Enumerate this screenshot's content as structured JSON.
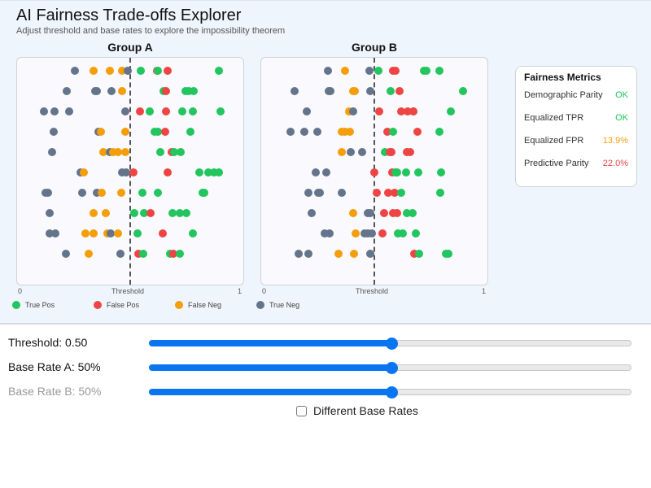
{
  "header": {
    "title": "AI Fairness Trade-offs Explorer",
    "subtitle": "Adjust threshold and base rates to explore the impossibility theorem"
  },
  "colors": {
    "true_pos": "#22c55e",
    "false_pos": "#ef4444",
    "false_neg": "#f59e0b",
    "true_neg": "#64748b",
    "ok": "#22c55e",
    "warn": "#f59e0b",
    "bad": "#ef4444",
    "accent": "#0a75f0"
  },
  "axis": {
    "min_label": "0",
    "mid_label": "Threshold",
    "max_label": "1"
  },
  "threshold": 0.5,
  "groups": [
    {
      "name": "Group A",
      "dots": [
        [
          0.25,
          0,
          "tn"
        ],
        [
          0.335,
          0,
          "fn"
        ],
        [
          0.408,
          0,
          "fn"
        ],
        [
          0.463,
          0,
          "fn"
        ],
        [
          0.489,
          0,
          "tn"
        ],
        [
          0.548,
          0,
          "tp"
        ],
        [
          0.621,
          0,
          "fp"
        ],
        [
          0.625,
          0,
          "tp"
        ],
        [
          0.669,
          0,
          "fp"
        ],
        [
          0.901,
          0,
          "tp"
        ],
        [
          0.213,
          1,
          "tn"
        ],
        [
          0.342,
          1,
          "tn"
        ],
        [
          0.349,
          1,
          "tn"
        ],
        [
          0.415,
          1,
          "tn"
        ],
        [
          0.463,
          1,
          "fn"
        ],
        [
          0.651,
          1,
          "tp"
        ],
        [
          0.662,
          1,
          "fp"
        ],
        [
          0.75,
          1,
          "tp"
        ],
        [
          0.765,
          1,
          "tp"
        ],
        [
          0.787,
          1,
          "tp"
        ],
        [
          0.11,
          2,
          "tn"
        ],
        [
          0.158,
          2,
          "tn"
        ],
        [
          0.224,
          2,
          "tn"
        ],
        [
          0.478,
          2,
          "tn"
        ],
        [
          0.544,
          2,
          "fp"
        ],
        [
          0.588,
          2,
          "tp"
        ],
        [
          0.662,
          2,
          "fp"
        ],
        [
          0.735,
          2,
          "tp"
        ],
        [
          0.783,
          2,
          "tp"
        ],
        [
          0.908,
          2,
          "tp"
        ],
        [
          0.154,
          3,
          "tn"
        ],
        [
          0.357,
          3,
          "tn"
        ],
        [
          0.368,
          3,
          "fn"
        ],
        [
          0.478,
          3,
          "fn"
        ],
        [
          0.61,
          3,
          "tp"
        ],
        [
          0.625,
          3,
          "tp"
        ],
        [
          0.658,
          3,
          "fp"
        ],
        [
          0.772,
          3,
          "tp"
        ],
        [
          0.147,
          4,
          "tn"
        ],
        [
          0.379,
          4,
          "fn"
        ],
        [
          0.408,
          4,
          "tn"
        ],
        [
          0.423,
          4,
          "fn"
        ],
        [
          0.445,
          4,
          "fn"
        ],
        [
          0.478,
          4,
          "fn"
        ],
        [
          0.636,
          4,
          "tp"
        ],
        [
          0.688,
          4,
          "fp"
        ],
        [
          0.699,
          4,
          "tp"
        ],
        [
          0.728,
          4,
          "tp"
        ],
        [
          0.276,
          5,
          "tn"
        ],
        [
          0.29,
          5,
          "fn"
        ],
        [
          0.463,
          5,
          "tn"
        ],
        [
          0.482,
          5,
          "tn"
        ],
        [
          0.515,
          5,
          "fp"
        ],
        [
          0.669,
          5,
          "fp"
        ],
        [
          0.813,
          5,
          "tp"
        ],
        [
          0.853,
          5,
          "tp"
        ],
        [
          0.879,
          5,
          "tp"
        ],
        [
          0.901,
          5,
          "tp"
        ],
        [
          0.118,
          6,
          "tn"
        ],
        [
          0.129,
          6,
          "tn"
        ],
        [
          0.283,
          6,
          "tn"
        ],
        [
          0.349,
          6,
          "tn"
        ],
        [
          0.371,
          6,
          "fn"
        ],
        [
          0.46,
          6,
          "fn"
        ],
        [
          0.555,
          6,
          "tp"
        ],
        [
          0.625,
          6,
          "tp"
        ],
        [
          0.827,
          6,
          "tp"
        ],
        [
          0.835,
          6,
          "tp"
        ],
        [
          0.136,
          7,
          "tn"
        ],
        [
          0.335,
          7,
          "fn"
        ],
        [
          0.39,
          7,
          "fn"
        ],
        [
          0.518,
          7,
          "tp"
        ],
        [
          0.563,
          7,
          "tp"
        ],
        [
          0.592,
          7,
          "fp"
        ],
        [
          0.691,
          7,
          "tp"
        ],
        [
          0.724,
          7,
          "tp"
        ],
        [
          0.754,
          7,
          "tp"
        ],
        [
          0.136,
          8,
          "tn"
        ],
        [
          0.162,
          8,
          "tn"
        ],
        [
          0.298,
          8,
          "fn"
        ],
        [
          0.335,
          8,
          "fn"
        ],
        [
          0.397,
          8,
          "fn"
        ],
        [
          0.412,
          8,
          "tn"
        ],
        [
          0.445,
          8,
          "fn"
        ],
        [
          0.533,
          8,
          "tp"
        ],
        [
          0.647,
          8,
          "fp"
        ],
        [
          0.783,
          8,
          "tp"
        ],
        [
          0.21,
          9,
          "tn"
        ],
        [
          0.313,
          9,
          "fn"
        ],
        [
          0.456,
          9,
          "tn"
        ],
        [
          0.537,
          9,
          "fp"
        ],
        [
          0.559,
          9,
          "tp"
        ],
        [
          0.68,
          9,
          "tp"
        ],
        [
          0.695,
          9,
          "fp"
        ],
        [
          0.724,
          9,
          "tp"
        ]
      ]
    },
    {
      "name": "Group B",
      "dots": [
        [
          0.29,
          0,
          "tn"
        ],
        [
          0.368,
          0,
          "fn"
        ],
        [
          0.478,
          0,
          "tn"
        ],
        [
          0.518,
          0,
          "tp"
        ],
        [
          0.585,
          0,
          "fp"
        ],
        [
          0.596,
          0,
          "fp"
        ],
        [
          0.724,
          0,
          "tp"
        ],
        [
          0.735,
          0,
          "tp"
        ],
        [
          0.794,
          0,
          "tp"
        ],
        [
          0.14,
          1,
          "tn"
        ],
        [
          0.294,
          1,
          "tn"
        ],
        [
          0.301,
          1,
          "tn"
        ],
        [
          0.404,
          1,
          "fn"
        ],
        [
          0.412,
          1,
          "fn"
        ],
        [
          0.482,
          1,
          "tn"
        ],
        [
          0.574,
          1,
          "tp"
        ],
        [
          0.614,
          1,
          "fp"
        ],
        [
          0.901,
          1,
          "tp"
        ],
        [
          0.195,
          2,
          "tn"
        ],
        [
          0.386,
          2,
          "fn"
        ],
        [
          0.404,
          2,
          "tn"
        ],
        [
          0.522,
          2,
          "fp"
        ],
        [
          0.621,
          2,
          "fp"
        ],
        [
          0.651,
          2,
          "fp"
        ],
        [
          0.677,
          2,
          "tp"
        ],
        [
          0.676,
          2,
          "fp"
        ],
        [
          0.846,
          2,
          "tp"
        ],
        [
          0.121,
          3,
          "tn"
        ],
        [
          0.184,
          3,
          "tn"
        ],
        [
          0.243,
          3,
          "tn"
        ],
        [
          0.353,
          3,
          "fn"
        ],
        [
          0.368,
          3,
          "fn"
        ],
        [
          0.39,
          3,
          "fn"
        ],
        [
          0.559,
          3,
          "fp"
        ],
        [
          0.585,
          3,
          "tp"
        ],
        [
          0.695,
          3,
          "fp"
        ],
        [
          0.794,
          3,
          "tp"
        ],
        [
          0.353,
          4,
          "fn"
        ],
        [
          0.393,
          4,
          "tn"
        ],
        [
          0.445,
          4,
          "tn"
        ],
        [
          0.548,
          4,
          "tp"
        ],
        [
          0.57,
          4,
          "fp"
        ],
        [
          0.577,
          4,
          "fp"
        ],
        [
          0.647,
          4,
          "fp"
        ],
        [
          0.662,
          4,
          "fp"
        ],
        [
          0.235,
          5,
          "tn"
        ],
        [
          0.283,
          5,
          "tn"
        ],
        [
          0.5,
          5,
          "fp"
        ],
        [
          0.581,
          5,
          "fp"
        ],
        [
          0.596,
          5,
          "tp"
        ],
        [
          0.603,
          5,
          "tp"
        ],
        [
          0.643,
          5,
          "tp"
        ],
        [
          0.699,
          5,
          "tp"
        ],
        [
          0.801,
          5,
          "tp"
        ],
        [
          0.202,
          6,
          "tn"
        ],
        [
          0.246,
          6,
          "tn"
        ],
        [
          0.254,
          6,
          "tn"
        ],
        [
          0.353,
          6,
          "tn"
        ],
        [
          0.511,
          6,
          "fp"
        ],
        [
          0.563,
          6,
          "fp"
        ],
        [
          0.592,
          6,
          "fp"
        ],
        [
          0.621,
          6,
          "tp"
        ],
        [
          0.798,
          6,
          "tp"
        ],
        [
          0.217,
          7,
          "tn"
        ],
        [
          0.404,
          7,
          "fn"
        ],
        [
          0.471,
          7,
          "tn"
        ],
        [
          0.482,
          7,
          "tn"
        ],
        [
          0.544,
          7,
          "fp"
        ],
        [
          0.585,
          7,
          "fp"
        ],
        [
          0.603,
          7,
          "fp"
        ],
        [
          0.647,
          7,
          "tp"
        ],
        [
          0.673,
          7,
          "tp"
        ],
        [
          0.276,
          8,
          "tn"
        ],
        [
          0.298,
          8,
          "tn"
        ],
        [
          0.415,
          8,
          "fn"
        ],
        [
          0.456,
          8,
          "tn"
        ],
        [
          0.471,
          8,
          "tn"
        ],
        [
          0.489,
          8,
          "tn"
        ],
        [
          0.537,
          8,
          "fp"
        ],
        [
          0.607,
          8,
          "tp"
        ],
        [
          0.629,
          8,
          "tp"
        ],
        [
          0.688,
          8,
          "tp"
        ],
        [
          0.158,
          9,
          "tn"
        ],
        [
          0.202,
          9,
          "tn"
        ],
        [
          0.338,
          9,
          "fn"
        ],
        [
          0.408,
          9,
          "fn"
        ],
        [
          0.482,
          9,
          "tn"
        ],
        [
          0.68,
          9,
          "fp"
        ],
        [
          0.702,
          9,
          "tp"
        ],
        [
          0.824,
          9,
          "tp"
        ],
        [
          0.835,
          9,
          "tp"
        ]
      ]
    }
  ],
  "legend": [
    {
      "key": "tp",
      "label": "True Pos"
    },
    {
      "key": "fp",
      "label": "False Pos"
    },
    {
      "key": "fn",
      "label": "False Neg"
    },
    {
      "key": "tn",
      "label": "True Neg"
    }
  ],
  "metrics": {
    "title": "Fairness Metrics",
    "rows": [
      {
        "label": "Demographic Parity",
        "value": "OK",
        "status": "ok"
      },
      {
        "label": "Equalized TPR",
        "value": "OK",
        "status": "ok"
      },
      {
        "label": "Equalized FPR",
        "value": "13.9%",
        "status": "warn"
      },
      {
        "label": "Predictive Parity",
        "value": "22.0%",
        "status": "bad"
      }
    ]
  },
  "controls": {
    "threshold_label": "Threshold: 0.50",
    "threshold_value": 0.5,
    "base_rate_a_label": "Base Rate A: 50%",
    "base_rate_a_value": 0.5,
    "base_rate_b_label": "Base Rate B: 50%",
    "base_rate_b_value": 0.5,
    "base_rate_b_disabled": true,
    "different_base_rates_label": "Different Base Rates",
    "different_base_rates_checked": false
  }
}
